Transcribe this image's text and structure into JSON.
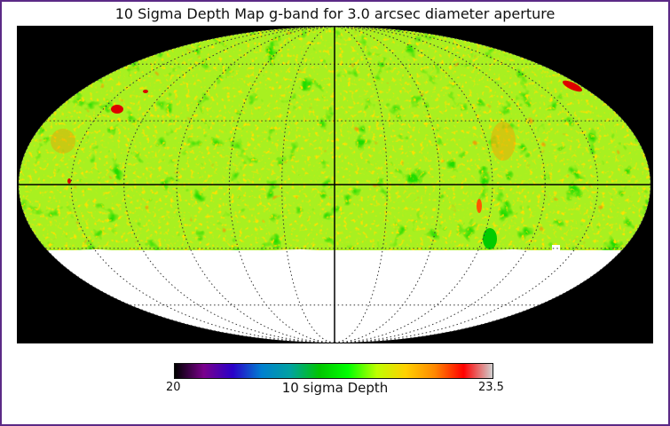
{
  "title": "10 Sigma Depth Map g-band for 3.0 arcsec diameter aperture",
  "map": {
    "projection": "Mollweide",
    "background_color": "#000000",
    "unobserved_color": "#ffffff",
    "graticule": "dotted",
    "meridians_deg": [
      -180,
      -150,
      -120,
      -90,
      -60,
      -30,
      0,
      30,
      60,
      90,
      120,
      150,
      180
    ],
    "parallels_deg": [
      -60,
      -30,
      0,
      30,
      60
    ],
    "coverage_dec_limit_deg": -30
  },
  "colorbar": {
    "label": "10 sigma Depth",
    "min_label": "20",
    "max_label": "23.5",
    "min": 20,
    "max": 23.5,
    "colors": [
      "#000000",
      "#7a008c",
      "#2a00c8",
      "#007fd0",
      "#00a2a0",
      "#00c500",
      "#00ff00",
      "#bfff00",
      "#ffd000",
      "#ff8800",
      "#ff0000",
      "#d0d0d0"
    ]
  }
}
